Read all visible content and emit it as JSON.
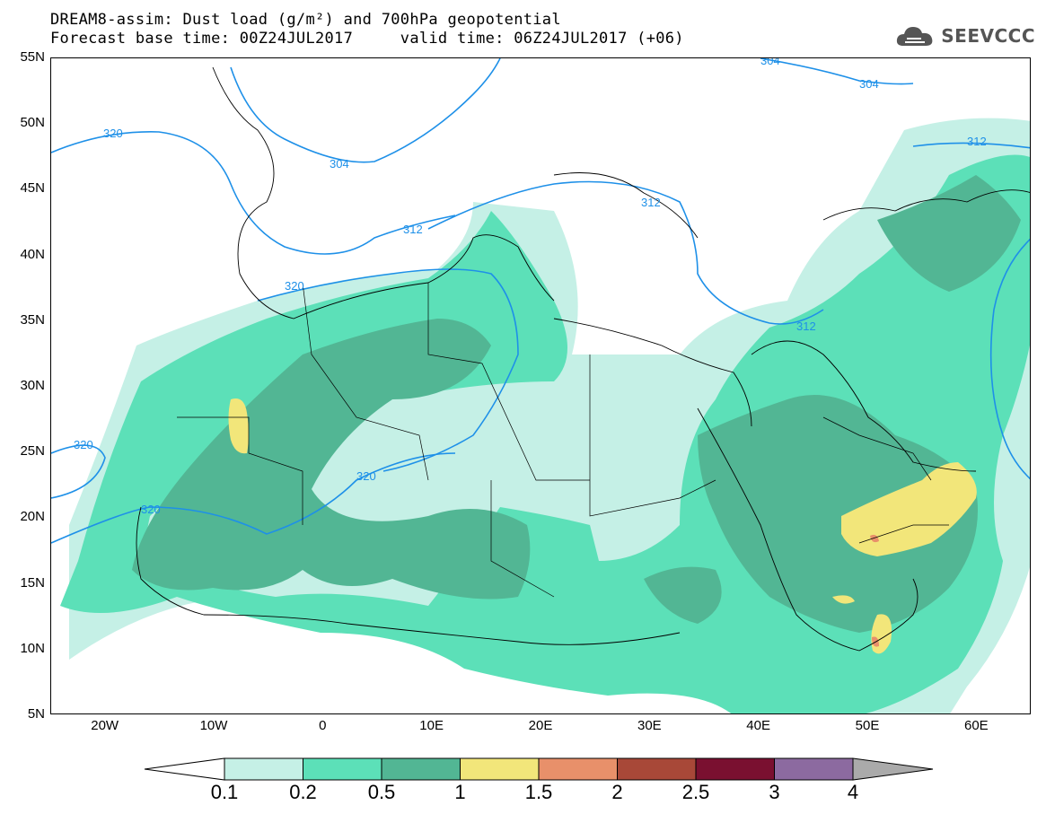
{
  "title": {
    "line1": "DREAM8-assim: Dust load (g/m²) and 700hPa geopotential",
    "line2": "Forecast base time: 00Z24JUL2017     valid time: 06Z24JUL2017 (+06)"
  },
  "logo": {
    "text": "SEEVCCC",
    "icon": "cloud-icon"
  },
  "axes": {
    "lat_labels": [
      "55N",
      "50N",
      "45N",
      "40N",
      "35N",
      "30N",
      "25N",
      "20N",
      "15N",
      "10N",
      "5N"
    ],
    "lon_labels": [
      "20W",
      "10W",
      "0",
      "10E",
      "20E",
      "30E",
      "40E",
      "50E",
      "60E"
    ],
    "lat_range": [
      5,
      55
    ],
    "lon_range": [
      -25,
      65
    ]
  },
  "contours": {
    "unit": "dam",
    "labels": [
      "320",
      "320",
      "320",
      "320",
      "320",
      "312",
      "312",
      "312",
      "312",
      "304",
      "304",
      "304"
    ]
  },
  "colorbar": {
    "levels": [
      "0.1",
      "0.2",
      "0.5",
      "1",
      "1.5",
      "2",
      "2.5",
      "3",
      "4"
    ],
    "colors": [
      "#c5f0e6",
      "#5ce0b8",
      "#52b694",
      "#f2e67a",
      "#e8906a",
      "#a84838",
      "#7a1030",
      "#8c6aa0"
    ],
    "below_color": "#ffffff",
    "above_color": "#aaaaaa"
  }
}
